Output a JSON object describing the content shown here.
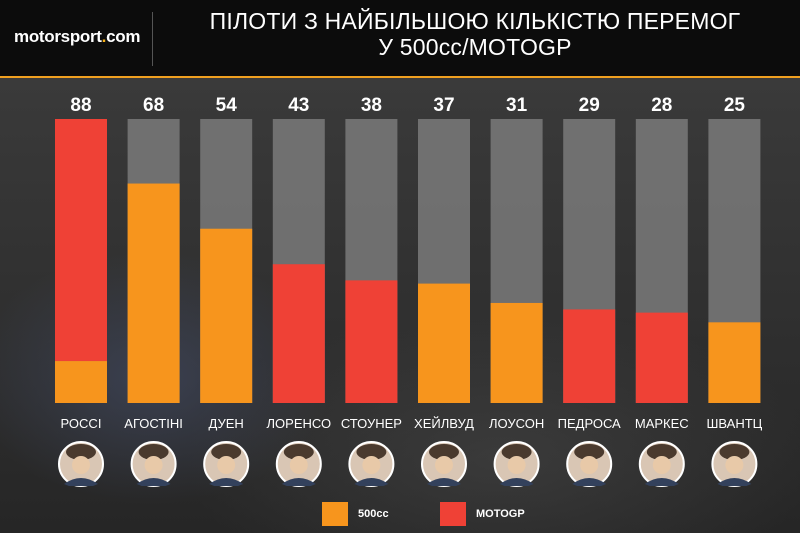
{
  "header": {
    "logo_text": "motorsport",
    "logo_dot": ".",
    "logo_tld": "com",
    "title_line1": "ПІЛОТИ З НАЙБІЛЬШОЮ КІЛЬКІСТЮ ПЕРЕМОГ",
    "title_line2": "У 500cc/MOTOGP"
  },
  "colors": {
    "500cc": "#f7951d",
    "MOTOGP": "#ef4136",
    "remainder": "#7a7a7a",
    "text": "#ffffff"
  },
  "chart_data": {
    "type": "bar",
    "stacked": true,
    "categories": [
      "РОССІ",
      "АГОСТІНІ",
      "ДУЕН",
      "ЛОРЕНСО",
      "СТОУНЕР",
      "ХЕЙЛВУД",
      "ЛОУСОН",
      "ПЕДРОСА",
      "МАРКЕС",
      "ШВАНТЦ"
    ],
    "totals": [
      88,
      68,
      54,
      43,
      38,
      37,
      31,
      29,
      28,
      25
    ],
    "series": [
      {
        "name": "500cc",
        "values": [
          13,
          68,
          54,
          0,
          0,
          37,
          31,
          0,
          0,
          25
        ]
      },
      {
        "name": "MOTOGP",
        "values": [
          75,
          0,
          0,
          43,
          38,
          0,
          0,
          29,
          28,
          0
        ]
      }
    ],
    "ylim": [
      0,
      88
    ],
    "legend_position": "bottom",
    "grid": false
  },
  "legend": [
    {
      "label": "500cc",
      "color": "#f7951d"
    },
    {
      "label": "MOTOGP",
      "color": "#ef4136"
    }
  ]
}
